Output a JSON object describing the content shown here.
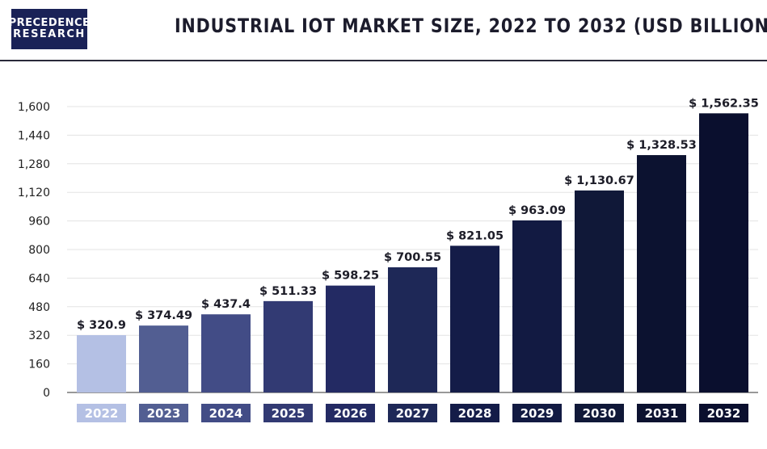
{
  "header": {
    "logo_line1": "PRECEDENCE",
    "logo_line2": "RESEARCH",
    "title": "INDUSTRIAL IOT MARKET SIZE, 2022 TO 2032 (USD BILLION)"
  },
  "colors": {
    "logo_bg": "#1a2257",
    "bars": [
      "#b4c0e4",
      "#525e92",
      "#424c86",
      "#323a73",
      "#232a63",
      "#1e2857",
      "#141c48",
      "#121a42",
      "#101838",
      "#0c1230",
      "#0a0f2e"
    ]
  },
  "chart_data": {
    "type": "bar",
    "title": "INDUSTRIAL IOT MARKET SIZE, 2022 TO 2032 (USD BILLION)",
    "categories": [
      "2022",
      "2023",
      "2024",
      "2025",
      "2026",
      "2027",
      "2028",
      "2029",
      "2030",
      "2031",
      "2032"
    ],
    "values": [
      320.9,
      374.49,
      437.4,
      511.33,
      598.25,
      700.55,
      821.05,
      963.09,
      1130.67,
      1328.53,
      1562.35
    ],
    "value_labels": [
      "$ 320.9",
      "$ 374.49",
      "$ 437.4",
      "$ 511.33",
      "$ 598.25",
      "$ 700.55",
      "$ 821.05",
      "$ 963.09",
      "$ 1,130.67",
      "$ 1,328.53",
      "$ 1,562.35"
    ],
    "yticks": [
      0,
      160,
      320,
      480,
      640,
      800,
      960,
      1120,
      1280,
      1440,
      1600
    ],
    "ytick_labels": [
      "0",
      "160",
      "320",
      "480",
      "640",
      "800",
      "960",
      "1,120",
      "1,280",
      "1,440",
      "1,600"
    ],
    "ylim": [
      0,
      1600
    ],
    "grid": true,
    "xlabel": "",
    "ylabel": ""
  }
}
